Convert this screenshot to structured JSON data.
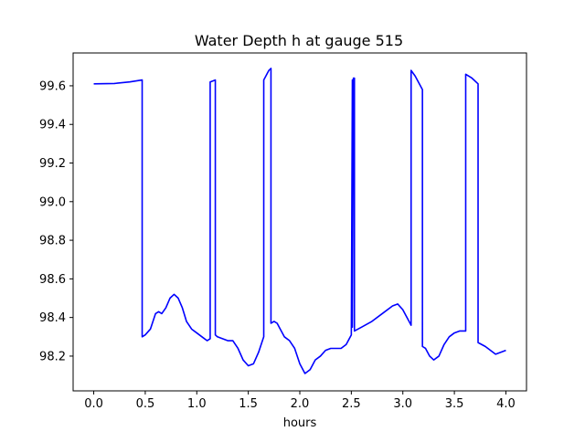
{
  "chart_data": {
    "type": "line",
    "title": "Water Depth h at gauge 515",
    "xlabel": "hours",
    "ylabel": "",
    "xlim": [
      -0.2,
      4.2
    ],
    "ylim": [
      98.02,
      99.77
    ],
    "xticks": [
      0.0,
      0.5,
      1.0,
      1.5,
      2.0,
      2.5,
      3.0,
      3.5,
      4.0
    ],
    "xtick_labels": [
      "0.0",
      "0.5",
      "1.0",
      "1.5",
      "2.0",
      "2.5",
      "3.0",
      "3.5",
      "4.0"
    ],
    "yticks": [
      98.2,
      98.4,
      98.6,
      98.8,
      99.0,
      99.2,
      99.4,
      99.6
    ],
    "ytick_labels": [
      "98.2",
      "98.4",
      "98.6",
      "98.8",
      "99.0",
      "99.2",
      "99.4",
      "99.6"
    ],
    "grid": false,
    "series": [
      {
        "name": "",
        "color": "#0000ff",
        "x": [
          0.0,
          0.2,
          0.35,
          0.47,
          0.47,
          0.5,
          0.55,
          0.6,
          0.63,
          0.66,
          0.7,
          0.74,
          0.78,
          0.82,
          0.86,
          0.9,
          0.95,
          1.0,
          1.05,
          1.1,
          1.13,
          1.13,
          1.18,
          1.18,
          1.2,
          1.25,
          1.3,
          1.35,
          1.4,
          1.45,
          1.5,
          1.55,
          1.6,
          1.65,
          1.65,
          1.7,
          1.72,
          1.72,
          1.75,
          1.78,
          1.8,
          1.85,
          1.9,
          1.95,
          2.0,
          2.05,
          2.1,
          2.15,
          2.2,
          2.25,
          2.3,
          2.35,
          2.4,
          2.45,
          2.5,
          2.51,
          2.51,
          2.52,
          2.53,
          2.53,
          2.6,
          2.7,
          2.8,
          2.9,
          2.95,
          3.0,
          3.05,
          3.08,
          3.08,
          3.12,
          3.18,
          3.19,
          3.19,
          3.22,
          3.26,
          3.3,
          3.35,
          3.4,
          3.45,
          3.5,
          3.55,
          3.61,
          3.61,
          3.67,
          3.73,
          3.73,
          3.8,
          3.85,
          3.9,
          3.95,
          4.0
        ],
        "y": [
          99.61,
          99.612,
          99.62,
          99.63,
          98.3,
          98.31,
          98.34,
          98.42,
          98.43,
          98.42,
          98.45,
          98.5,
          98.52,
          98.5,
          98.45,
          98.38,
          98.34,
          98.32,
          98.3,
          98.28,
          98.29,
          99.62,
          99.63,
          98.31,
          98.3,
          98.29,
          98.28,
          98.28,
          98.24,
          98.18,
          98.15,
          98.16,
          98.22,
          98.3,
          99.63,
          99.68,
          99.69,
          98.37,
          98.38,
          98.37,
          98.35,
          98.3,
          98.28,
          98.24,
          98.16,
          98.11,
          98.13,
          98.18,
          98.2,
          98.23,
          98.24,
          98.24,
          98.24,
          98.26,
          98.31,
          99.63,
          98.35,
          99.64,
          99.64,
          98.33,
          98.35,
          98.38,
          98.42,
          98.46,
          98.47,
          98.44,
          98.39,
          98.36,
          99.68,
          99.65,
          99.59,
          99.58,
          98.25,
          98.24,
          98.2,
          98.18,
          98.2,
          98.26,
          98.3,
          98.32,
          98.33,
          98.33,
          99.66,
          99.64,
          99.61,
          98.27,
          98.25,
          98.23,
          98.21,
          98.22,
          98.23
        ]
      }
    ]
  }
}
